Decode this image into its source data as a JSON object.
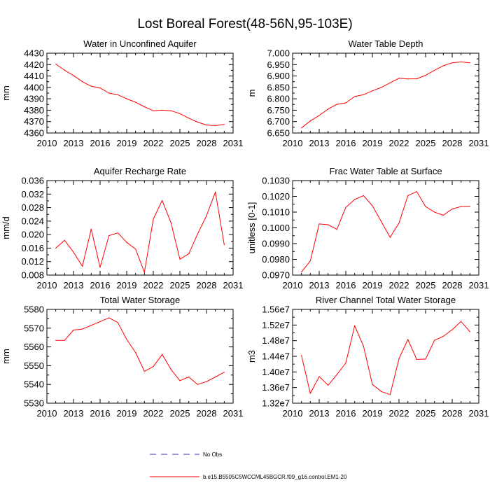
{
  "figure": {
    "title": "Lost Boreal Forest(48-56N,95-103E)",
    "series_color": "#ff0000",
    "obs_color": "#3535a8",
    "legend": [
      {
        "label": "No Obs",
        "style": "dashed",
        "color": "#3535a8"
      },
      {
        "label": "b.e15.B5505C5WCCML45BGCR.f09_g16.control.EM1-20",
        "style": "solid",
        "color": "#ff0000"
      }
    ]
  },
  "chart_data": [
    {
      "type": "line",
      "title": "Water in Unconfined Aquifer",
      "ylabel": "mm",
      "xlim": [
        2010,
        2031
      ],
      "x_ticks": [
        2010,
        2013,
        2016,
        2019,
        2022,
        2025,
        2028,
        2031
      ],
      "x_tick_labels": [
        "2010",
        "2013",
        "2016",
        "2019",
        "2022",
        "2025",
        "2028",
        "2031"
      ],
      "ylim": [
        4360,
        4430
      ],
      "y_ticks": [
        4360,
        4370,
        4380,
        4390,
        4400,
        4410,
        4420,
        4430
      ],
      "y_tick_labels": [
        "4360",
        "4370",
        "4380",
        "4390",
        "4400",
        "4410",
        "4420",
        "4430"
      ],
      "series": [
        {
          "name": "b.e15.B5505C5WCCML45BGCR.f09_g16.control.EM1-20",
          "x": [
            2011,
            2012,
            2013,
            2014,
            2015,
            2016,
            2017,
            2018,
            2019,
            2020,
            2021,
            2022,
            2023,
            2024,
            2025,
            2026,
            2027,
            2028,
            2029,
            2030
          ],
          "values": [
            4420.5,
            4415,
            4410.5,
            4405,
            4401,
            4399.5,
            4395,
            4393.5,
            4390,
            4387,
            4383,
            4379.5,
            4380,
            4379.5,
            4377,
            4373,
            4369.5,
            4367,
            4366.5,
            4367.5
          ]
        }
      ]
    },
    {
      "type": "line",
      "title": "Water Table Depth",
      "ylabel": "m",
      "xlim": [
        2010,
        2031
      ],
      "x_ticks": [
        2010,
        2013,
        2016,
        2019,
        2022,
        2025,
        2028,
        2031
      ],
      "x_tick_labels": [
        "2010",
        "2013",
        "2016",
        "2019",
        "2022",
        "2025",
        "2028",
        "2031"
      ],
      "ylim": [
        6.65,
        7.0
      ],
      "y_ticks": [
        6.65,
        6.7,
        6.75,
        6.8,
        6.85,
        6.9,
        6.95,
        7.0
      ],
      "y_tick_labels": [
        "6.650",
        "6.700",
        "6.750",
        "6.800",
        "6.850",
        "6.900",
        "6.950",
        "7.000"
      ],
      "series": [
        {
          "name": "b.e15.B5505C5WCCML45BGCR.f09_g16.control.EM1-20",
          "x": [
            2011,
            2012,
            2013,
            2014,
            2015,
            2016,
            2017,
            2018,
            2019,
            2020,
            2021,
            2022,
            2023,
            2024,
            2025,
            2026,
            2027,
            2028,
            2029,
            2030
          ],
          "values": [
            6.672,
            6.703,
            6.727,
            6.755,
            6.776,
            6.782,
            6.81,
            6.818,
            6.835,
            6.85,
            6.87,
            6.89,
            6.887,
            6.888,
            6.903,
            6.925,
            6.945,
            6.958,
            6.962,
            6.958
          ]
        }
      ]
    },
    {
      "type": "line",
      "title": "Aquifer Recharge Rate",
      "ylabel": "mm/d",
      "xlim": [
        2010,
        2031
      ],
      "x_ticks": [
        2010,
        2013,
        2016,
        2019,
        2022,
        2025,
        2028,
        2031
      ],
      "x_tick_labels": [
        "2010",
        "2013",
        "2016",
        "2019",
        "2022",
        "2025",
        "2028",
        "2031"
      ],
      "ylim": [
        0.008,
        0.036
      ],
      "y_ticks": [
        0.008,
        0.012,
        0.016,
        0.02,
        0.024,
        0.028,
        0.032,
        0.036
      ],
      "y_tick_labels": [
        "0.008",
        "0.012",
        "0.016",
        "0.020",
        "0.024",
        "0.028",
        "0.032",
        "0.036"
      ],
      "series": [
        {
          "name": "b.e15.B5505C5WCCML45BGCR.f09_g16.control.EM1-20",
          "x": [
            2011,
            2012,
            2013,
            2014,
            2015,
            2016,
            2017,
            2018,
            2019,
            2020,
            2021,
            2022,
            2023,
            2024,
            2025,
            2026,
            2027,
            2028,
            2029,
            2030
          ],
          "values": [
            0.016,
            0.0183,
            0.0148,
            0.0106,
            0.0216,
            0.0103,
            0.0197,
            0.0205,
            0.0177,
            0.0157,
            0.0088,
            0.0246,
            0.0301,
            0.0235,
            0.0127,
            0.0143,
            0.0202,
            0.0256,
            0.0326,
            0.017
          ]
        }
      ]
    },
    {
      "type": "line",
      "title": "Frac Water Table at Surface",
      "ylabel": "unitless [0-1]",
      "xlim": [
        2010,
        2031
      ],
      "x_ticks": [
        2010,
        2013,
        2016,
        2019,
        2022,
        2025,
        2028,
        2031
      ],
      "x_tick_labels": [
        "2010",
        "2013",
        "2016",
        "2019",
        "2022",
        "2025",
        "2028",
        "2031"
      ],
      "ylim": [
        0.097,
        0.103
      ],
      "y_ticks": [
        0.097,
        0.098,
        0.099,
        0.1,
        0.101,
        0.102,
        0.103
      ],
      "y_tick_labels": [
        "0.0970",
        "0.0980",
        "0.0990",
        "0.1000",
        "0.1010",
        "0.1020",
        "0.1030"
      ],
      "series": [
        {
          "name": "b.e15.B5505C5WCCML45BGCR.f09_g16.control.EM1-20",
          "x": [
            2011,
            2012,
            2013,
            2014,
            2015,
            2016,
            2017,
            2018,
            2019,
            2020,
            2021,
            2022,
            2023,
            2024,
            2025,
            2026,
            2027,
            2028,
            2029,
            2030
          ],
          "values": [
            0.0972,
            0.0979,
            0.10025,
            0.1002,
            0.0999,
            0.1013,
            0.1018,
            0.10205,
            0.1014,
            0.1004,
            0.0994,
            0.1003,
            0.10205,
            0.1023,
            0.10135,
            0.101,
            0.1008,
            0.1012,
            0.10135,
            0.10137
          ]
        }
      ]
    },
    {
      "type": "line",
      "title": "Total Water Storage",
      "ylabel": "mm",
      "xlim": [
        2010,
        2031
      ],
      "x_ticks": [
        2010,
        2013,
        2016,
        2019,
        2022,
        2025,
        2028,
        2031
      ],
      "x_tick_labels": [
        "2010",
        "2013",
        "2016",
        "2019",
        "2022",
        "2025",
        "2028",
        "2031"
      ],
      "ylim": [
        5530,
        5580
      ],
      "y_ticks": [
        5530,
        5540,
        5550,
        5560,
        5570,
        5580
      ],
      "y_tick_labels": [
        "5530",
        "5540",
        "5550",
        "5560",
        "5570",
        "5580"
      ],
      "series": [
        {
          "name": "b.e15.B5505C5WCCML45BGCR.f09_g16.control.EM1-20",
          "x": [
            2011,
            2012,
            2013,
            2014,
            2015,
            2016,
            2017,
            2018,
            2019,
            2020,
            2021,
            2022,
            2023,
            2024,
            2025,
            2026,
            2027,
            2028,
            2029,
            2030
          ],
          "values": [
            5563.5,
            5563.5,
            5569,
            5569.5,
            5571.5,
            5573.5,
            5575.5,
            5573,
            5564,
            5557,
            5547,
            5549.5,
            5556,
            5548,
            5542,
            5544,
            5540,
            5541.5,
            5544,
            5546.5
          ]
        }
      ]
    },
    {
      "type": "line",
      "title": "River Channel Total Water Storage",
      "ylabel": "m3",
      "xlim": [
        2010,
        2031
      ],
      "x_ticks": [
        2010,
        2013,
        2016,
        2019,
        2022,
        2025,
        2028,
        2031
      ],
      "x_tick_labels": [
        "2010",
        "2013",
        "2016",
        "2019",
        "2022",
        "2025",
        "2028",
        "2031"
      ],
      "ylim": [
        13200000,
        15600000
      ],
      "y_ticks": [
        13200000,
        13600000,
        14000000,
        14400000,
        14800000,
        15200000,
        15600000
      ],
      "y_tick_labels": [
        "1.32e7",
        "1.36e7",
        "1.40e7",
        "1.44e7",
        "1.48e7",
        "1.52e7",
        "1.56e7"
      ],
      "series": [
        {
          "name": "b.e15.B5505C5WCCML45BGCR.f09_g16.control.EM1-20",
          "x": [
            2011,
            2012,
            2013,
            2014,
            2015,
            2016,
            2017,
            2018,
            2019,
            2020,
            2021,
            2022,
            2023,
            2024,
            2025,
            2026,
            2027,
            2028,
            2029,
            2030
          ],
          "values": [
            14420000,
            13450000,
            13880000,
            13660000,
            13930000,
            14230000,
            15180000,
            14660000,
            13680000,
            13500000,
            13420000,
            14340000,
            14830000,
            14320000,
            14330000,
            14810000,
            14910000,
            15080000,
            15290000,
            15030000
          ]
        }
      ]
    }
  ]
}
